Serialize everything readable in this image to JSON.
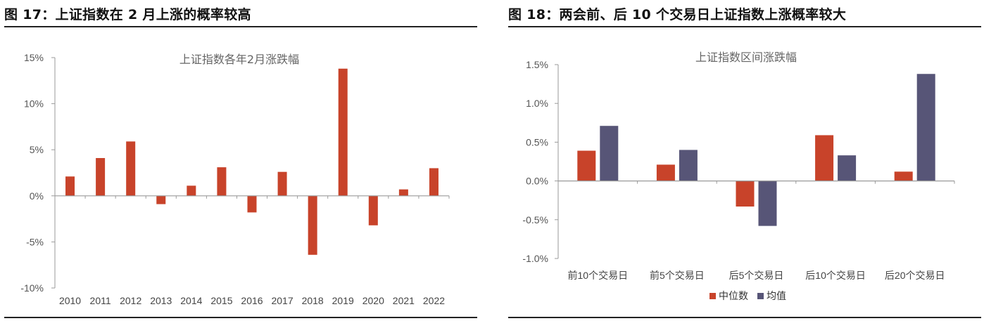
{
  "figures": {
    "left_title": "图 17：上证指数在 2 月上涨的概率较高",
    "right_title": "图 18：两会前、后 10 个交易日上证指数上涨概率较大"
  },
  "colors": {
    "red": "#C8432A",
    "navy": "#575577",
    "axis": "#9a9a9a"
  },
  "chart_data": [
    {
      "type": "bar",
      "title": "上证指数各年2月涨跌幅",
      "categories": [
        "2010",
        "2011",
        "2012",
        "2013",
        "2014",
        "2015",
        "2016",
        "2017",
        "2018",
        "2019",
        "2020",
        "2021",
        "2022"
      ],
      "values": [
        2.1,
        4.1,
        5.9,
        -0.9,
        1.1,
        3.1,
        -1.8,
        2.6,
        -6.4,
        13.8,
        -3.2,
        0.7,
        3.0
      ],
      "ylim": [
        -10,
        15
      ],
      "yticks": [
        -10,
        -5,
        0,
        5,
        10,
        15
      ],
      "ytick_labels": [
        "-10%",
        "-5%",
        "0%",
        "5%",
        "10%",
        "15%"
      ],
      "xlabel": "",
      "ylabel": ""
    },
    {
      "type": "bar",
      "title": "上证指数区间涨跌幅",
      "categories": [
        "前10个交易日",
        "前5个交易日",
        "后5个交易日",
        "后10个交易日",
        "后20个交易日"
      ],
      "series": [
        {
          "name": "中位数",
          "values": [
            0.39,
            0.21,
            -0.33,
            0.59,
            0.12
          ]
        },
        {
          "name": "均值",
          "values": [
            0.71,
            0.4,
            -0.58,
            0.33,
            1.38
          ]
        }
      ],
      "ylim": [
        -1.0,
        1.5
      ],
      "yticks": [
        -1.0,
        -0.5,
        0.0,
        0.5,
        1.0,
        1.5
      ],
      "ytick_labels": [
        "-1.0%",
        "-0.5%",
        "0.0%",
        "0.5%",
        "1.0%",
        "1.5%"
      ],
      "legend": "bottom",
      "xlabel": "",
      "ylabel": ""
    }
  ]
}
